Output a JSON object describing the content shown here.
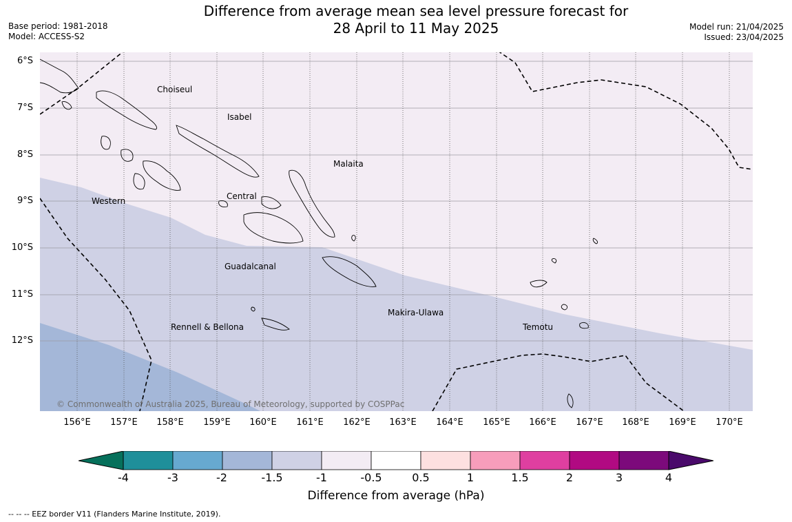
{
  "title_line1": "Difference from average mean sea level pressure forecast for",
  "title_line2": "28 April to 11 May 2025",
  "meta_left": {
    "base_period": "Base period: 1981-2018",
    "model": "Model: ACCESS-S2"
  },
  "meta_right": {
    "model_run": "Model run: 21/04/2025",
    "issued": "Issued: 23/04/2025"
  },
  "latitude_labels": [
    "6°S",
    "7°S",
    "8°S",
    "9°S",
    "10°S",
    "11°S",
    "12°S"
  ],
  "longitude_labels": [
    "156°E",
    "157°E",
    "158°E",
    "159°E",
    "160°E",
    "161°E",
    "162°E",
    "163°E",
    "164°E",
    "165°E",
    "166°E",
    "167°E",
    "168°E",
    "169°E",
    "170°E"
  ],
  "region_labels": [
    {
      "name": "Choiseul"
    },
    {
      "name": "Isabel"
    },
    {
      "name": "Malaita"
    },
    {
      "name": "Western"
    },
    {
      "name": "Central"
    },
    {
      "name": "Guadalcanal"
    },
    {
      "name": "Makira-Ulawa"
    },
    {
      "name": "Rennell & Bellona"
    },
    {
      "name": "Temotu"
    }
  ],
  "copyright": "© Commonwealth of Australia 2025, Bureau of Meteorology, supported by COSPPac",
  "colorbar": {
    "label": "Difference from average (hPa)",
    "ticks": [
      "-4",
      "-3",
      "-2",
      "-1.5",
      "-1",
      "-0.5",
      "0.5",
      "1",
      "1.5",
      "2",
      "3",
      "4"
    ],
    "under_color": "#06705b",
    "over_color": "#4a0a6b",
    "colors": [
      "#1f8f9a",
      "#67a9d0",
      "#a4b7d8",
      "#cfd1e5",
      "#f3ecf4",
      "#ffffff",
      "#fde0e0",
      "#f79dbb",
      "#df3fa0",
      "#b10a82",
      "#7c0a7b"
    ]
  },
  "field_colors": {
    "band_minus_1_to_minus_0_5": "#f3ecf4",
    "band_minus_1_5_to_minus_1": "#cfd1e5",
    "band_minus_2_to_minus_1_5": "#a4b7d8"
  },
  "footnote": "--  --  -- EEZ border V11 (Flanders Marine Institute, 2019)."
}
